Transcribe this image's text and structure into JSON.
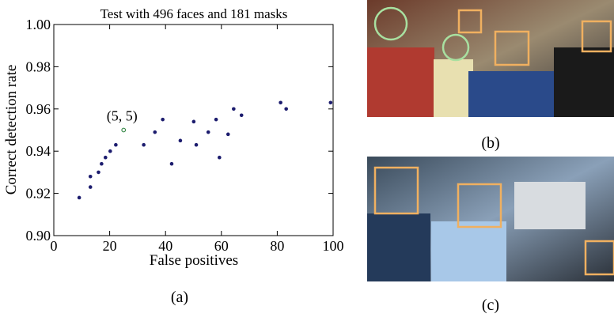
{
  "chart_data": {
    "type": "scatter",
    "title": "Test with 496 faces and 181 masks",
    "xlabel": "False positives",
    "ylabel": "Correct detection rate",
    "x": [
      9.1,
      13.1,
      13.1,
      16,
      17.1,
      18.5,
      20.2,
      22.2,
      32.2,
      36.2,
      39,
      42.2,
      45.3,
      50.1,
      51,
      55.3,
      58.1,
      59.3,
      62.4,
      64.4,
      67.2,
      81.2,
      83.2,
      99.1
    ],
    "y": [
      0.918,
      0.928,
      0.923,
      0.93,
      0.934,
      0.937,
      0.94,
      0.943,
      0.943,
      0.949,
      0.955,
      0.934,
      0.945,
      0.954,
      0.943,
      0.949,
      0.955,
      0.937,
      0.948,
      0.96,
      0.957,
      0.963,
      0.96,
      0.963
    ],
    "color": "#1c1c6e",
    "annotation": {
      "text": "(5, 5)",
      "x": 25,
      "y": 0.95,
      "color": "#3a8a4a"
    },
    "xlim": [
      0,
      100
    ],
    "ylim": [
      0.9,
      1.0
    ],
    "xticks": [
      0,
      20,
      40,
      60,
      80,
      100
    ],
    "yticks": [
      {
        "value": 0.9,
        "label": "0.90"
      },
      {
        "value": 0.92,
        "label": "0.92"
      },
      {
        "value": 0.94,
        "label": "0.94"
      },
      {
        "value": 0.96,
        "label": "0.96"
      },
      {
        "value": 0.98,
        "label": "0.98"
      },
      {
        "value": 1.0,
        "label": "1.00"
      }
    ]
  },
  "captions": [
    "(a)",
    "(b)",
    "(c)"
  ]
}
